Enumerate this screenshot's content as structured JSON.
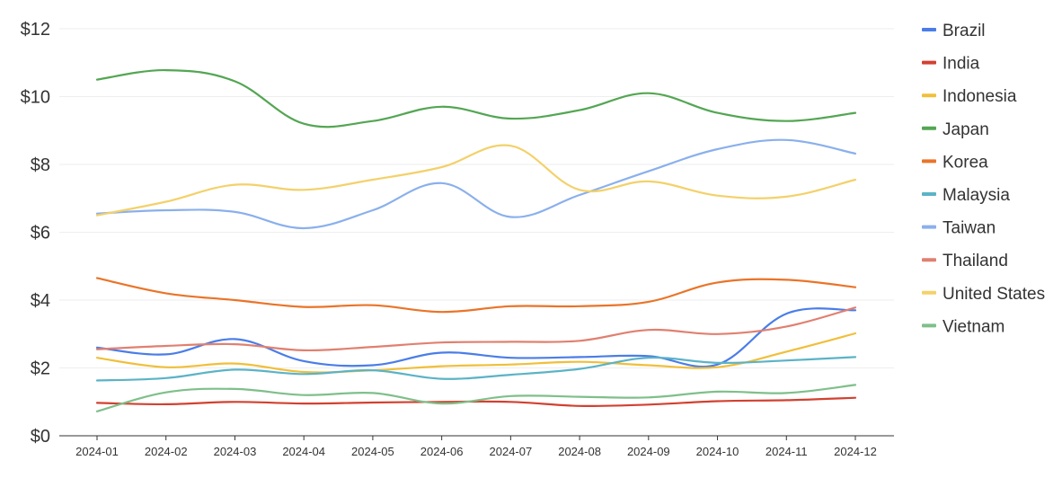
{
  "chart_data": {
    "type": "line",
    "title": "",
    "xlabel": "",
    "ylabel": "",
    "ylim": [
      0,
      12
    ],
    "y_ticks": [
      "$0",
      "$2",
      "$4",
      "$6",
      "$8",
      "$10",
      "$12"
    ],
    "y_tick_values": [
      0,
      2,
      4,
      6,
      8,
      10,
      12
    ],
    "categories": [
      "2024-01",
      "2024-02",
      "2024-03",
      "2024-04",
      "2024-05",
      "2024-06",
      "2024-07",
      "2024-08",
      "2024-09",
      "2024-10",
      "2024-11",
      "2024-12"
    ],
    "grid": true,
    "legend_position": "right",
    "series": [
      {
        "name": "Brazil",
        "color": "#4a7de8",
        "values": [
          2.6,
          2.4,
          2.85,
          2.2,
          2.08,
          2.45,
          2.3,
          2.32,
          2.35,
          2.1,
          3.6,
          3.7
        ]
      },
      {
        "name": "India",
        "color": "#d24130",
        "values": [
          0.97,
          0.93,
          1.0,
          0.95,
          0.98,
          1.0,
          1.0,
          0.88,
          0.92,
          1.02,
          1.05,
          1.12
        ]
      },
      {
        "name": "Indonesia",
        "color": "#f0bf3a",
        "values": [
          2.3,
          2.02,
          2.13,
          1.88,
          1.93,
          2.05,
          2.1,
          2.18,
          2.08,
          2.02,
          2.48,
          3.02
        ]
      },
      {
        "name": "Japan",
        "color": "#53a653",
        "values": [
          10.5,
          10.78,
          10.45,
          9.2,
          9.28,
          9.7,
          9.35,
          9.6,
          10.1,
          9.52,
          9.28,
          9.52
        ]
      },
      {
        "name": "Korea",
        "color": "#ea7428",
        "values": [
          4.65,
          4.2,
          4.0,
          3.8,
          3.85,
          3.65,
          3.82,
          3.82,
          3.95,
          4.52,
          4.6,
          4.38
        ]
      },
      {
        "name": "Malaysia",
        "color": "#5bb3c6",
        "values": [
          1.63,
          1.7,
          1.95,
          1.82,
          1.93,
          1.68,
          1.8,
          1.97,
          2.3,
          2.15,
          2.22,
          2.32
        ]
      },
      {
        "name": "Taiwan",
        "color": "#8ab0ec",
        "values": [
          6.55,
          6.65,
          6.6,
          6.12,
          6.65,
          7.45,
          6.45,
          7.1,
          7.8,
          8.45,
          8.72,
          8.32
        ]
      },
      {
        "name": "Thailand",
        "color": "#e08070",
        "values": [
          2.55,
          2.65,
          2.7,
          2.52,
          2.62,
          2.75,
          2.77,
          2.8,
          3.12,
          3.0,
          3.22,
          3.78
        ]
      },
      {
        "name": "United States",
        "color": "#f3d16a",
        "values": [
          6.5,
          6.9,
          7.4,
          7.25,
          7.55,
          7.92,
          8.55,
          7.25,
          7.5,
          7.08,
          7.05,
          7.55
        ]
      },
      {
        "name": "Vietnam",
        "color": "#7fbf8a",
        "values": [
          0.72,
          1.28,
          1.38,
          1.2,
          1.26,
          0.95,
          1.17,
          1.15,
          1.13,
          1.3,
          1.26,
          1.5
        ]
      }
    ]
  }
}
